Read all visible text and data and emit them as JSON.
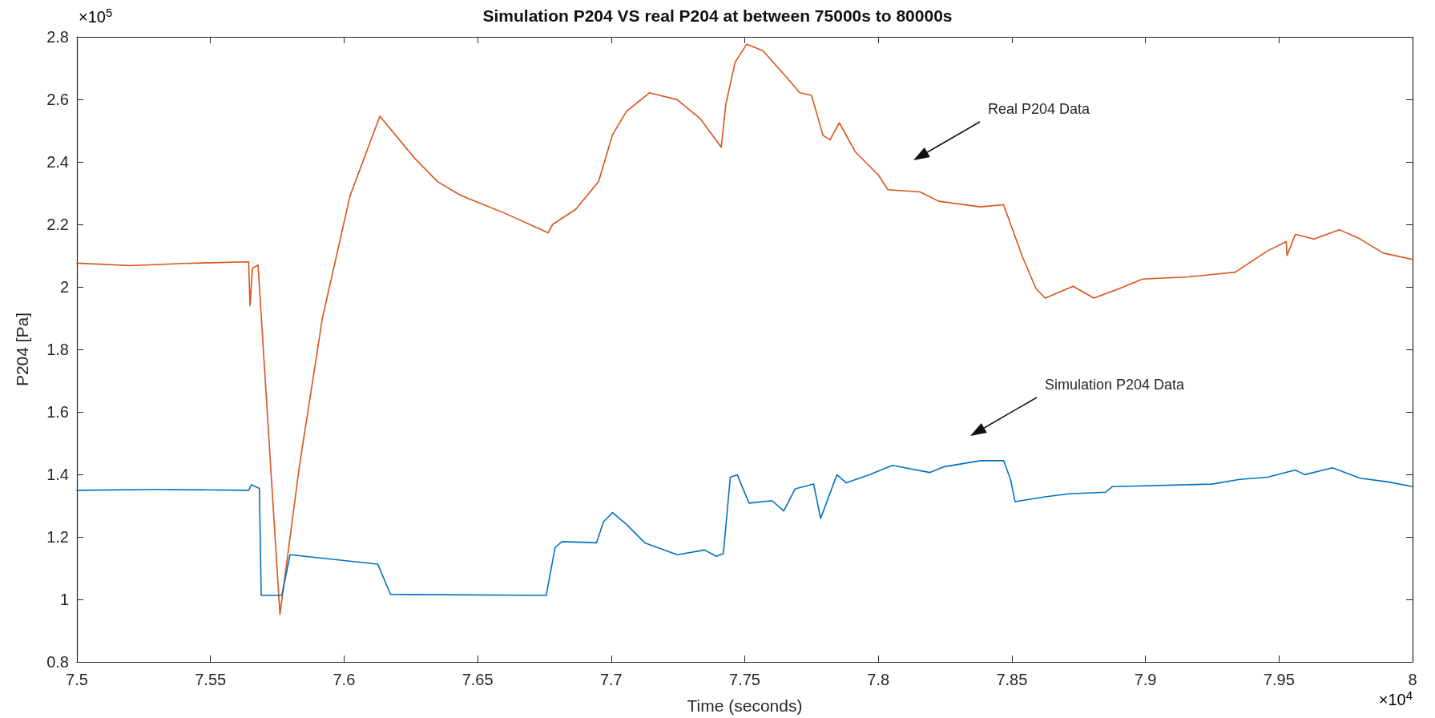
{
  "chart_data": {
    "type": "line",
    "title": "Simulation P204 VS real P204 at between 75000s to 80000s",
    "xlabel": "Time (seconds)",
    "ylabel": "P204 [Pa]",
    "xlim": [
      7.5,
      8
    ],
    "ylim": [
      0.8,
      2.8
    ],
    "xticks": [
      7.5,
      7.55,
      7.6,
      7.65,
      7.7,
      7.75,
      7.8,
      7.85,
      7.9,
      7.95,
      8
    ],
    "yticks": [
      0.8,
      1,
      1.2,
      1.4,
      1.6,
      1.8,
      2,
      2.2,
      2.4,
      2.6,
      2.8
    ],
    "grid": false,
    "marker": "none",
    "line_style": "solid",
    "annotations": [
      "×10$^{5}$",
      "×10$^{4}$",
      "Real P204 Data",
      "Simulation P204 Data"
    ],
    "series": [
      {
        "color": "#d95319",
        "x": [
          7.5,
          7.52,
          7.54,
          7.5643,
          7.5648,
          7.5657,
          7.5678,
          7.576,
          7.5833,
          7.5919,
          7.6022,
          7.6134,
          7.6264,
          7.635,
          7.6436,
          7.6609,
          7.6764,
          7.6781,
          7.6867,
          7.6953,
          7.7005,
          7.7057,
          7.7143,
          7.7247,
          7.7333,
          7.7412,
          7.7429,
          7.7464,
          7.7507,
          7.7568,
          7.7654,
          7.7706,
          7.775,
          7.7793,
          7.7819,
          7.7854,
          7.7914,
          7.8001,
          7.8036,
          7.8157,
          7.8226,
          7.8382,
          7.8469,
          7.8538,
          7.859,
          7.8625,
          7.8729,
          7.8807,
          7.8903,
          7.8989,
          7.9163,
          7.9336,
          7.9457,
          7.9527,
          7.953,
          7.9561,
          7.9631,
          7.9726,
          7.9804,
          7.9891,
          8
        ],
        "values": [
          2.076,
          2.068,
          2.075,
          2.08,
          1.94,
          2.06,
          2.07,
          0.952,
          1.427,
          1.9,
          2.29,
          2.546,
          2.412,
          2.337,
          2.293,
          2.233,
          2.173,
          2.2,
          2.248,
          2.337,
          2.487,
          2.561,
          2.621,
          2.599,
          2.539,
          2.447,
          2.583,
          2.719,
          2.776,
          2.756,
          2.673,
          2.621,
          2.613,
          2.485,
          2.47,
          2.525,
          2.432,
          2.357,
          2.311,
          2.304,
          2.274,
          2.256,
          2.263,
          2.1,
          1.995,
          1.964,
          2.002,
          1.964,
          1.995,
          2.025,
          2.032,
          2.047,
          2.115,
          2.145,
          2.1,
          2.168,
          2.153,
          2.183,
          2.153,
          2.108,
          2.088
        ]
      },
      {
        "color": "#0072bd",
        "x": [
          7.5,
          7.53,
          7.5643,
          7.5653,
          7.5683,
          7.569,
          7.5767,
          7.5798,
          7.6126,
          7.6174,
          7.6757,
          7.679,
          7.6816,
          7.6945,
          7.6971,
          7.7005,
          7.7057,
          7.7126,
          7.7247,
          7.735,
          7.7394,
          7.742,
          7.7446,
          7.7472,
          7.7516,
          7.7602,
          7.7646,
          7.7689,
          7.7758,
          7.7767,
          7.7784,
          7.7845,
          7.788,
          7.7966,
          7.8053,
          7.8192,
          7.8244,
          7.8382,
          7.8469,
          7.8495,
          7.8512,
          7.8625,
          7.8712,
          7.8851,
          7.8877,
          7.9249,
          7.9353,
          7.9457,
          7.9561,
          7.9596,
          7.97,
          7.9804,
          7.9908,
          8
        ],
        "values": [
          1.349,
          1.352,
          1.349,
          1.367,
          1.355,
          1.013,
          1.013,
          1.143,
          1.113,
          1.016,
          1.013,
          1.166,
          1.185,
          1.181,
          1.248,
          1.278,
          1.24,
          1.181,
          1.143,
          1.158,
          1.138,
          1.147,
          1.391,
          1.399,
          1.308,
          1.316,
          1.283,
          1.354,
          1.369,
          1.331,
          1.259,
          1.399,
          1.373,
          1.399,
          1.429,
          1.406,
          1.424,
          1.444,
          1.444,
          1.384,
          1.313,
          1.328,
          1.338,
          1.343,
          1.361,
          1.369,
          1.384,
          1.391,
          1.414,
          1.399,
          1.421,
          1.388,
          1.376,
          1.361
        ]
      }
    ]
  }
}
